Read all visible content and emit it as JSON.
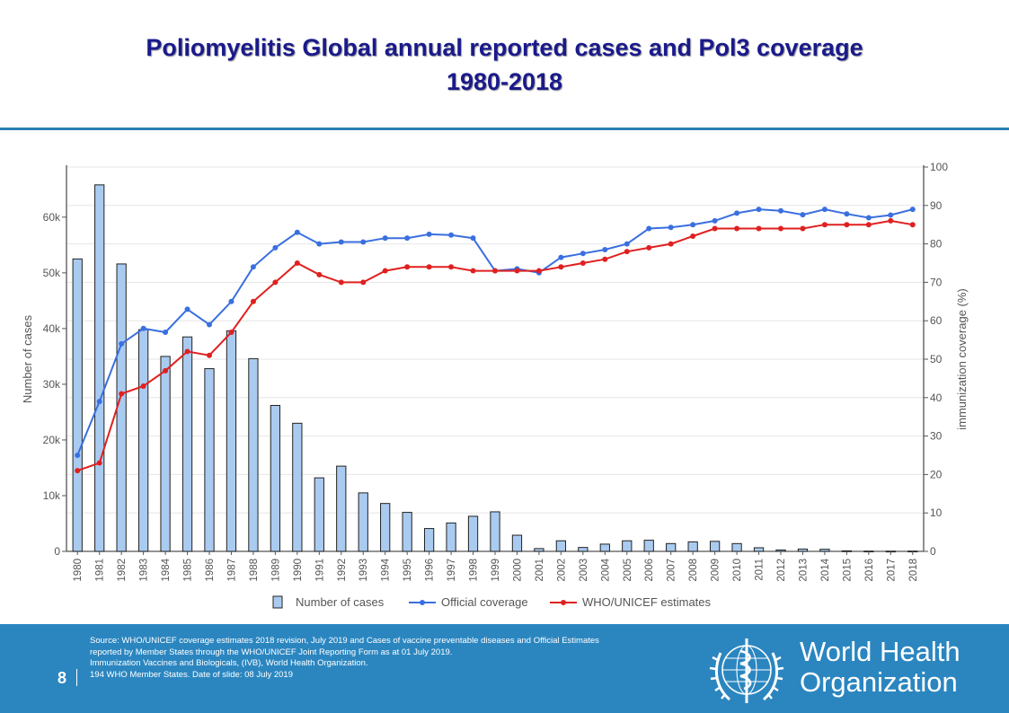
{
  "title": {
    "line1": "Poliomyelitis Global annual reported cases and Pol3 coverage",
    "line2": "1980-2018"
  },
  "chart_data": {
    "type": "bar",
    "categories": [
      "1980",
      "1981",
      "1982",
      "1983",
      "1984",
      "1985",
      "1986",
      "1987",
      "1988",
      "1989",
      "1990",
      "1991",
      "1992",
      "1993",
      "1994",
      "1995",
      "1996",
      "1997",
      "1998",
      "1999",
      "2000",
      "2001",
      "2002",
      "2003",
      "2004",
      "2005",
      "2006",
      "2007",
      "2008",
      "2009",
      "2010",
      "2011",
      "2012",
      "2013",
      "2014",
      "2015",
      "2016",
      "2017",
      "2018"
    ],
    "series": [
      {
        "name": "Number of cases",
        "type": "bar",
        "axis": "left",
        "values": [
          52500,
          65800,
          51600,
          39800,
          35000,
          38500,
          32800,
          39600,
          34600,
          26200,
          23000,
          13200,
          15300,
          10500,
          8600,
          7000,
          4100,
          5100,
          6300,
          7100,
          2900,
          500,
          1900,
          700,
          1300,
          1900,
          2000,
          1400,
          1700,
          1800,
          1400,
          650,
          250,
          420,
          380,
          90,
          40,
          30,
          40
        ]
      },
      {
        "name": "Official coverage",
        "type": "line",
        "axis": "right",
        "values": [
          25,
          39,
          54,
          58,
          57,
          63,
          59,
          65,
          74,
          79,
          83,
          80,
          80.5,
          80.5,
          81.5,
          81.5,
          82.5,
          82.3,
          81.5,
          73,
          73.5,
          72.5,
          76.5,
          77.5,
          78.5,
          80,
          84,
          84.3,
          85,
          86,
          88,
          89,
          88.6,
          87.6,
          89,
          87.8,
          86.8,
          87.5,
          89
        ]
      },
      {
        "name": "WHO/UNICEF estimates",
        "type": "line",
        "axis": "right",
        "values": [
          21,
          23,
          41,
          43,
          47,
          52,
          51,
          57,
          65,
          70,
          75,
          72,
          70,
          70,
          73,
          74,
          74,
          74,
          73,
          73,
          73,
          73,
          74,
          75,
          76,
          78,
          79,
          80,
          82,
          84,
          84,
          84,
          84,
          84,
          85,
          85,
          85,
          86,
          85
        ]
      }
    ],
    "y_left": {
      "label": "Number of cases",
      "min": 0,
      "max": 69000,
      "ticks": [
        0,
        10000,
        20000,
        30000,
        40000,
        50000,
        60000
      ],
      "tick_labels": [
        "0",
        "10k",
        "20k",
        "30k",
        "40k",
        "50k",
        "60k"
      ]
    },
    "y_right": {
      "label": "immunization coverage (%)",
      "min": 0,
      "max": 100,
      "ticks": [
        0,
        10,
        20,
        30,
        40,
        50,
        60,
        70,
        80,
        90,
        100
      ],
      "tick_labels": [
        "0",
        "10",
        "20",
        "30",
        "40",
        "50",
        "60",
        "70",
        "80",
        "90",
        "100"
      ]
    },
    "grid": true,
    "legend_position": "bottom",
    "colors": {
      "bar_fill": "#aacbf0",
      "bar_stroke": "#222222",
      "official": "#3a6fe0",
      "estimates": "#e02020",
      "axis": "#555555",
      "grid": "#e6e6e6"
    }
  },
  "footer": {
    "source_lines": [
      "Source: WHO/UNICEF  coverage estimates 2018 revision, July 2019 and  Cases of vaccine preventable diseases and Official Estimates",
      "reported by Member States through the WHO/UNICEF  Joint Reporting Form as at 01 July 2019.",
      "Immunization  Vaccines and Biologicals, (IVB), World Health Organization.",
      "194 WHO Member States. Date of slide: 08 July 2019"
    ],
    "slide_number": "8",
    "org_name_line1": "World Health",
    "org_name_line2": "Organization",
    "logo_icon": "who-emblem-icon",
    "bg_color": "#2b86c0"
  }
}
